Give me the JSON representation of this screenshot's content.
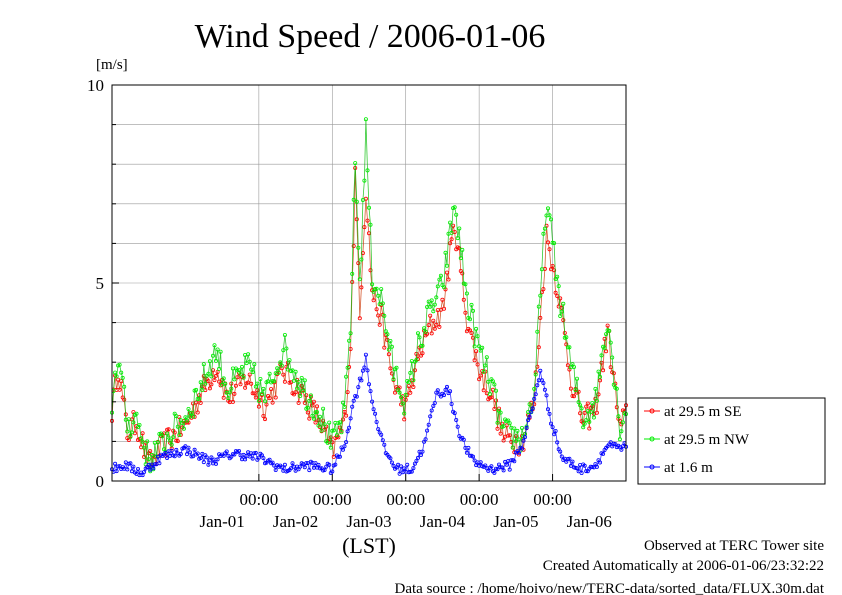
{
  "chart_data": {
    "type": "line",
    "title": "Wind Speed / 2006-01-06",
    "yunit": "[m/s]",
    "ylim": [
      0,
      10
    ],
    "yticks": [
      0,
      5,
      10
    ],
    "xlabel": "(LST)",
    "xlim": [
      "2005-12-31T00:00",
      "2006-01-07T00:00"
    ],
    "x_time_ticks": [
      {
        "label": "00:00",
        "x": "2006-01-02T00:00"
      },
      {
        "label": "00:00",
        "x": "2006-01-03T00:00"
      },
      {
        "label": "00:00",
        "x": "2006-01-04T00:00"
      },
      {
        "label": "00:00",
        "x": "2006-01-05T00:00"
      },
      {
        "label": "00:00",
        "x": "2006-01-06T00:00"
      }
    ],
    "x_date_ticks": [
      {
        "label": "Jan-01",
        "x": "2006-01-01T12:00"
      },
      {
        "label": "Jan-02",
        "x": "2006-01-02T12:00"
      },
      {
        "label": "Jan-03",
        "x": "2006-01-03T12:00"
      },
      {
        "label": "Jan-04",
        "x": "2006-01-04T12:00"
      },
      {
        "label": "Jan-05",
        "x": "2006-01-05T12:00"
      },
      {
        "label": "Jan-06",
        "x": "2006-01-06T12:00"
      }
    ],
    "grid": true,
    "legend_position": "right",
    "sample_interval": "30 min",
    "series": [
      {
        "name": "at 29.5 m SE",
        "color": "#ff0000",
        "keyframes": [
          {
            "x": "2005-12-31T00:00",
            "y": 1.8
          },
          {
            "x": "2005-12-31T02:00",
            "y": 2.9
          },
          {
            "x": "2005-12-31T05:00",
            "y": 1.2
          },
          {
            "x": "2005-12-31T08:00",
            "y": 1.5
          },
          {
            "x": "2005-12-31T12:00",
            "y": 0.4
          },
          {
            "x": "2005-12-31T18:00",
            "y": 1.0
          },
          {
            "x": "2006-01-01T00:00",
            "y": 1.4
          },
          {
            "x": "2006-01-01T05:00",
            "y": 2.2
          },
          {
            "x": "2006-01-01T10:00",
            "y": 2.9
          },
          {
            "x": "2006-01-01T14:00",
            "y": 2.1
          },
          {
            "x": "2006-01-01T20:00",
            "y": 2.6
          },
          {
            "x": "2006-01-02T02:00",
            "y": 1.9
          },
          {
            "x": "2006-01-02T08:00",
            "y": 2.8
          },
          {
            "x": "2006-01-02T14:00",
            "y": 2.2
          },
          {
            "x": "2006-01-02T20:00",
            "y": 1.5
          },
          {
            "x": "2006-01-03T00:00",
            "y": 0.7
          },
          {
            "x": "2006-01-03T04:00",
            "y": 1.5
          },
          {
            "x": "2006-01-03T06:00",
            "y": 3.5
          },
          {
            "x": "2006-01-03T07:30",
            "y": 7.6
          },
          {
            "x": "2006-01-03T09:00",
            "y": 4.4
          },
          {
            "x": "2006-01-03T11:00",
            "y": 7.4
          },
          {
            "x": "2006-01-03T13:00",
            "y": 4.8
          },
          {
            "x": "2006-01-03T16:00",
            "y": 4.1
          },
          {
            "x": "2006-01-03T20:00",
            "y": 2.5
          },
          {
            "x": "2006-01-04T00:00",
            "y": 1.8
          },
          {
            "x": "2006-01-04T04:00",
            "y": 3.1
          },
          {
            "x": "2006-01-04T08:00",
            "y": 3.9
          },
          {
            "x": "2006-01-04T12:00",
            "y": 4.3
          },
          {
            "x": "2006-01-04T16:00",
            "y": 6.5
          },
          {
            "x": "2006-01-04T20:00",
            "y": 4.1
          },
          {
            "x": "2006-01-05T00:00",
            "y": 2.8
          },
          {
            "x": "2006-01-05T04:00",
            "y": 2.2
          },
          {
            "x": "2006-01-05T08:00",
            "y": 1.1
          },
          {
            "x": "2006-01-05T14:00",
            "y": 1.0
          },
          {
            "x": "2006-01-05T18:00",
            "y": 2.0
          },
          {
            "x": "2006-01-05T22:00",
            "y": 6.2
          },
          {
            "x": "2006-01-06T02:00",
            "y": 4.7
          },
          {
            "x": "2006-01-06T06:00",
            "y": 2.6
          },
          {
            "x": "2006-01-06T10:00",
            "y": 1.5
          },
          {
            "x": "2006-01-06T14:00",
            "y": 1.8
          },
          {
            "x": "2006-01-06T18:00",
            "y": 3.8
          },
          {
            "x": "2006-01-06T22:00",
            "y": 1.3
          },
          {
            "x": "2006-01-07T02:00",
            "y": 2.0
          },
          {
            "x": "2006-01-07T06:00",
            "y": 2.2
          },
          {
            "x": "2006-01-07T10:00",
            "y": 1.5
          },
          {
            "x": "2006-01-07T14:00",
            "y": 2.3
          },
          {
            "x": "2006-01-07T18:00",
            "y": 2.0
          },
          {
            "x": "2006-01-07T22:00",
            "y": 1.4
          }
        ]
      },
      {
        "name": "at 29.5 m NW",
        "color": "#00ee00",
        "keyframes": [
          {
            "x": "2005-12-31T00:00",
            "y": 2.0
          },
          {
            "x": "2005-12-31T02:00",
            "y": 3.2
          },
          {
            "x": "2005-12-31T05:00",
            "y": 1.4
          },
          {
            "x": "2005-12-31T08:00",
            "y": 1.6
          },
          {
            "x": "2005-12-31T12:00",
            "y": 0.5
          },
          {
            "x": "2005-12-31T18:00",
            "y": 1.1
          },
          {
            "x": "2006-01-01T00:00",
            "y": 1.6
          },
          {
            "x": "2006-01-01T05:00",
            "y": 2.4
          },
          {
            "x": "2006-01-01T10:00",
            "y": 3.3
          },
          {
            "x": "2006-01-01T14:00",
            "y": 2.3
          },
          {
            "x": "2006-01-01T20:00",
            "y": 2.9
          },
          {
            "x": "2006-01-02T02:00",
            "y": 2.1
          },
          {
            "x": "2006-01-02T08:00",
            "y": 3.4
          },
          {
            "x": "2006-01-02T14:00",
            "y": 2.4
          },
          {
            "x": "2006-01-02T20:00",
            "y": 1.7
          },
          {
            "x": "2006-01-03T00:00",
            "y": 0.9
          },
          {
            "x": "2006-01-03T04:00",
            "y": 1.7
          },
          {
            "x": "2006-01-03T06:00",
            "y": 4.0
          },
          {
            "x": "2006-01-03T07:30",
            "y": 8.1
          },
          {
            "x": "2006-01-03T09:00",
            "y": 5.0
          },
          {
            "x": "2006-01-03T11:00",
            "y": 8.8
          },
          {
            "x": "2006-01-03T13:00",
            "y": 5.2
          },
          {
            "x": "2006-01-03T16:00",
            "y": 4.6
          },
          {
            "x": "2006-01-03T20:00",
            "y": 2.8
          },
          {
            "x": "2006-01-04T00:00",
            "y": 2.0
          },
          {
            "x": "2006-01-04T04:00",
            "y": 3.4
          },
          {
            "x": "2006-01-04T08:00",
            "y": 4.3
          },
          {
            "x": "2006-01-04T12:00",
            "y": 4.9
          },
          {
            "x": "2006-01-04T16:00",
            "y": 7.0
          },
          {
            "x": "2006-01-04T20:00",
            "y": 4.6
          },
          {
            "x": "2006-01-05T00:00",
            "y": 3.3
          },
          {
            "x": "2006-01-05T04:00",
            "y": 2.4
          },
          {
            "x": "2006-01-05T08:00",
            "y": 1.2
          },
          {
            "x": "2006-01-05T14:00",
            "y": 1.1
          },
          {
            "x": "2006-01-05T18:00",
            "y": 2.2
          },
          {
            "x": "2006-01-05T22:00",
            "y": 7.1
          },
          {
            "x": "2006-01-06T02:00",
            "y": 4.8
          },
          {
            "x": "2006-01-06T06:00",
            "y": 2.9
          },
          {
            "x": "2006-01-06T10:00",
            "y": 1.6
          },
          {
            "x": "2006-01-06T14:00",
            "y": 2.0
          },
          {
            "x": "2006-01-06T18:00",
            "y": 4.2
          },
          {
            "x": "2006-01-06T22:00",
            "y": 1.4
          },
          {
            "x": "2006-01-07T02:00",
            "y": 2.2
          },
          {
            "x": "2006-01-07T06:00",
            "y": 2.4
          },
          {
            "x": "2006-01-07T10:00",
            "y": 1.6
          },
          {
            "x": "2006-01-07T14:00",
            "y": 2.5
          },
          {
            "x": "2006-01-07T18:00",
            "y": 2.2
          },
          {
            "x": "2006-01-07T22:00",
            "y": 1.5
          }
        ]
      },
      {
        "name": "at 1.6 m",
        "color": "#0000ff",
        "keyframes": [
          {
            "x": "2005-12-31T00:00",
            "y": 0.3
          },
          {
            "x": "2005-12-31T04:00",
            "y": 0.4
          },
          {
            "x": "2005-12-31T10:00",
            "y": 0.2
          },
          {
            "x": "2005-12-31T16:00",
            "y": 0.6
          },
          {
            "x": "2006-01-01T00:00",
            "y": 0.8
          },
          {
            "x": "2006-01-01T08:00",
            "y": 0.5
          },
          {
            "x": "2006-01-01T16:00",
            "y": 0.7
          },
          {
            "x": "2006-01-02T00:00",
            "y": 0.6
          },
          {
            "x": "2006-01-02T08:00",
            "y": 0.3
          },
          {
            "x": "2006-01-02T16:00",
            "y": 0.4
          },
          {
            "x": "2006-01-03T00:00",
            "y": 0.3
          },
          {
            "x": "2006-01-03T04:00",
            "y": 0.9
          },
          {
            "x": "2006-01-03T07:00",
            "y": 2.0
          },
          {
            "x": "2006-01-03T09:00",
            "y": 2.5
          },
          {
            "x": "2006-01-03T11:00",
            "y": 3.1
          },
          {
            "x": "2006-01-03T13:00",
            "y": 2.0
          },
          {
            "x": "2006-01-03T17:00",
            "y": 0.8
          },
          {
            "x": "2006-01-03T21:00",
            "y": 0.3
          },
          {
            "x": "2006-01-04T02:00",
            "y": 0.3
          },
          {
            "x": "2006-01-04T06:00",
            "y": 0.9
          },
          {
            "x": "2006-01-04T10:00",
            "y": 2.2
          },
          {
            "x": "2006-01-04T14:00",
            "y": 2.3
          },
          {
            "x": "2006-01-04T18:00",
            "y": 1.1
          },
          {
            "x": "2006-01-04T22:00",
            "y": 0.5
          },
          {
            "x": "2006-01-05T04:00",
            "y": 0.3
          },
          {
            "x": "2006-01-05T10:00",
            "y": 0.4
          },
          {
            "x": "2006-01-05T14:00",
            "y": 0.9
          },
          {
            "x": "2006-01-05T18:00",
            "y": 2.0
          },
          {
            "x": "2006-01-05T20:00",
            "y": 2.8
          },
          {
            "x": "2006-01-05T23:00",
            "y": 1.7
          },
          {
            "x": "2006-01-06T03:00",
            "y": 0.6
          },
          {
            "x": "2006-01-06T09:00",
            "y": 0.3
          },
          {
            "x": "2006-01-06T14:00",
            "y": 0.4
          },
          {
            "x": "2006-01-06T18:00",
            "y": 0.9
          },
          {
            "x": "2006-01-06T22:00",
            "y": 0.8
          },
          {
            "x": "2006-01-07T04:00",
            "y": 1.0
          },
          {
            "x": "2006-01-07T10:00",
            "y": 0.8
          },
          {
            "x": "2006-01-07T16:00",
            "y": 0.4
          },
          {
            "x": "2006-01-07T22:00",
            "y": 0.4
          }
        ]
      }
    ]
  },
  "footer": {
    "line1": "Observed at TERC Tower site",
    "line2": "Created Automatically at 2006-01-06/23:32:22",
    "line3": "Data source : /home/hoivo/new/TERC-data/sorted_data/FLUX.30m.dat"
  }
}
